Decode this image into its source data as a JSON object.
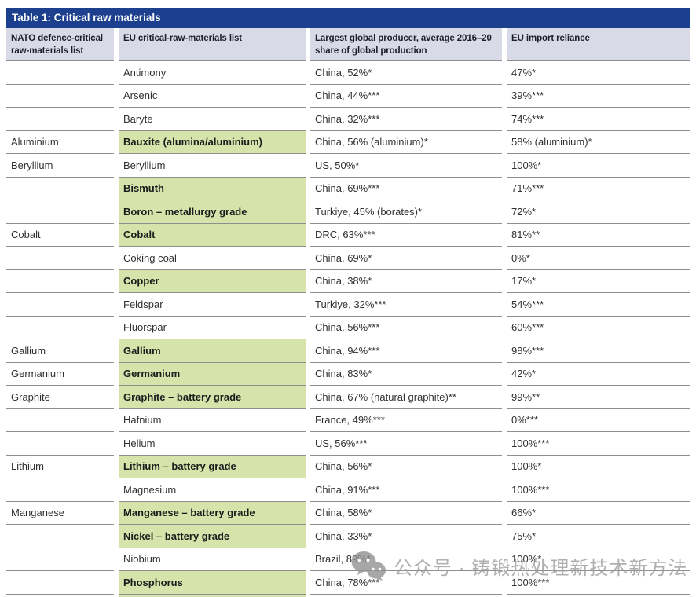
{
  "table": {
    "title": "Table 1: Critical raw materials",
    "columns": [
      "NATO defence-critical raw-materials list",
      "EU critical-raw-materials list",
      "Largest global producer, average 2016–20 share of global production",
      "EU import reliance"
    ],
    "rows": [
      {
        "nato": "",
        "eu": "Antimony",
        "highlight": false,
        "producer": "China, 52%*",
        "reliance": "47%*"
      },
      {
        "nato": "",
        "eu": "Arsenic",
        "highlight": false,
        "producer": "China, 44%***",
        "reliance": "39%***"
      },
      {
        "nato": "",
        "eu": "Baryte",
        "highlight": false,
        "producer": "China, 32%***",
        "reliance": "74%***"
      },
      {
        "nato": "Aluminium",
        "eu": "Bauxite (alumina/aluminium)",
        "highlight": true,
        "producer": "China, 56% (aluminium)*",
        "reliance": "58% (aluminium)*"
      },
      {
        "nato": "Beryllium",
        "eu": "Beryllium",
        "highlight": false,
        "producer": "US, 50%*",
        "reliance": "100%*"
      },
      {
        "nato": "",
        "eu": "Bismuth",
        "highlight": true,
        "producer": "China, 69%***",
        "reliance": "71%***"
      },
      {
        "nato": "",
        "eu": "Boron – metallurgy grade",
        "highlight": true,
        "producer": "Turkiye, 45% (borates)*",
        "reliance": "72%*"
      },
      {
        "nato": "Cobalt",
        "eu": "Cobalt",
        "highlight": true,
        "producer": "DRC, 63%***",
        "reliance": "81%**"
      },
      {
        "nato": "",
        "eu": "Coking coal",
        "highlight": false,
        "producer": "China, 69%*",
        "reliance": "0%*"
      },
      {
        "nato": "",
        "eu": "Copper",
        "highlight": true,
        "producer": "China, 38%*",
        "reliance": "17%*"
      },
      {
        "nato": "",
        "eu": "Feldspar",
        "highlight": false,
        "producer": "Turkiye, 32%***",
        "reliance": "54%***"
      },
      {
        "nato": "",
        "eu": "Fluorspar",
        "highlight": false,
        "producer": "China, 56%***",
        "reliance": "60%***"
      },
      {
        "nato": "Gallium",
        "eu": "Gallium",
        "highlight": true,
        "producer": "China, 94%***",
        "reliance": "98%***"
      },
      {
        "nato": "Germanium",
        "eu": "Germanium",
        "highlight": true,
        "producer": "China, 83%*",
        "reliance": "42%*"
      },
      {
        "nato": "Graphite",
        "eu": "Graphite – battery grade",
        "highlight": true,
        "producer": "China, 67% (natural graphite)**",
        "reliance": "99%**"
      },
      {
        "nato": "",
        "eu": "Hafnium",
        "highlight": false,
        "producer": "France, 49%***",
        "reliance": "0%***"
      },
      {
        "nato": "",
        "eu": "Helium",
        "highlight": false,
        "producer": "US, 56%***",
        "reliance": "100%***"
      },
      {
        "nato": "Lithium",
        "eu": "Lithium – battery grade",
        "highlight": true,
        "producer": "China, 56%*",
        "reliance": "100%*"
      },
      {
        "nato": "",
        "eu": "Magnesium",
        "highlight": false,
        "producer": "China, 91%***",
        "reliance": "100%***"
      },
      {
        "nato": "Manganese",
        "eu": "Manganese – battery grade",
        "highlight": true,
        "producer": "China, 58%*",
        "reliance": "66%*"
      },
      {
        "nato": "",
        "eu": "Nickel – battery grade",
        "highlight": true,
        "producer": "China, 33%*",
        "reliance": "75%*"
      },
      {
        "nato": "",
        "eu": "Niobium",
        "highlight": false,
        "producer": "Brazil, 89%*",
        "reliance": "100%*"
      },
      {
        "nato": "",
        "eu": "Phosphorus",
        "highlight": true,
        "producer": "China, 78%***",
        "reliance": "100%***"
      }
    ]
  },
  "watermark": {
    "icon": "wechat-icon",
    "text": "公众号 · 铸锻热处理新技术新方法"
  },
  "colors": {
    "title_bar_bg": "#1c3f8e",
    "header_bg": "#d8dae7",
    "highlight_green": "#d6e3ab",
    "row_border": "#8f8f8f",
    "watermark_gray": "#9b9b9b"
  }
}
